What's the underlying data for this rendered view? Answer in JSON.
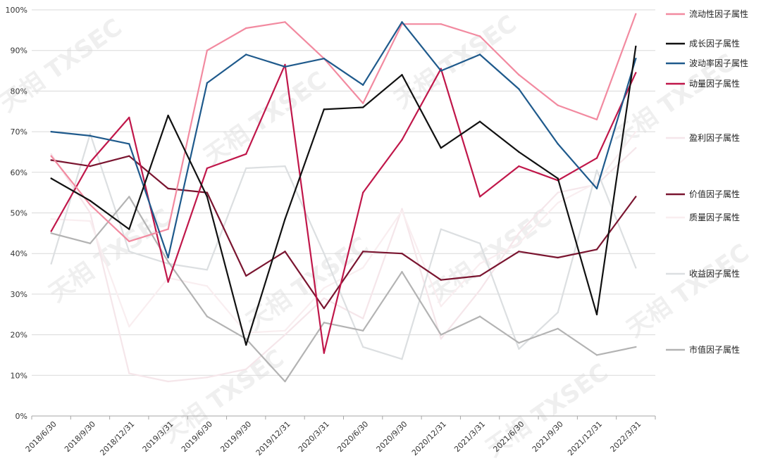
{
  "chart_data": {
    "type": "line",
    "title": "",
    "xlabel": "",
    "ylabel": "",
    "ylim": [
      0,
      100
    ],
    "y_ticks": [
      "0%",
      "10%",
      "20%",
      "30%",
      "40%",
      "50%",
      "60%",
      "70%",
      "80%",
      "90%",
      "100%"
    ],
    "categories": [
      "2018/6/30",
      "2018/9/30",
      "2018/12/31",
      "2019/3/31",
      "2019/6/30",
      "2019/9/30",
      "2019/12/31",
      "2020/3/31",
      "2020/6/30",
      "2020/9/30",
      "2020/12/31",
      "2021/3/31",
      "2021/6/30",
      "2021/9/30",
      "2021/12/31",
      "2022/3/31"
    ],
    "grid": "horizontal",
    "legend_position": "right",
    "watermark": "天相 TXSEC",
    "series": [
      {
        "name": "流动性因子属性",
        "color": "#f28aa0",
        "values": [
          64,
          52,
          43,
          46,
          90,
          95.5,
          97,
          88,
          77,
          96.5,
          96.5,
          93.5,
          84,
          76.5,
          73,
          99
        ]
      },
      {
        "name": "成长因子属性",
        "color": "#111111",
        "values": [
          58.5,
          53,
          46,
          74,
          54,
          17.5,
          48.5,
          75.5,
          76,
          84,
          66,
          72.5,
          65,
          58.5,
          25,
          91
        ]
      },
      {
        "name": "波动率因子属性",
        "color": "#1f5a8c",
        "values": [
          70,
          69,
          67,
          39,
          82,
          89,
          86,
          88,
          81.5,
          97,
          85,
          89,
          80.5,
          67,
          56,
          88
        ]
      },
      {
        "name": "动量因子属性",
        "color": "#c0174a",
        "values": [
          45.5,
          62.5,
          73.5,
          33,
          61,
          64.5,
          86.5,
          15.5,
          55,
          68,
          85.5,
          54,
          61.5,
          58,
          63.5,
          84.5
        ]
      },
      {
        "name": "盈利因子属性",
        "color": "#f5e6ea",
        "values": [
          64.5,
          50,
          10.5,
          8.5,
          9.5,
          11.5,
          20,
          29,
          24,
          51,
          19,
          31,
          45,
          55,
          57,
          66
        ]
      },
      {
        "name": "价值因子属性",
        "color": "#7a1530",
        "values": [
          63,
          61.5,
          64,
          56,
          55,
          34.5,
          40.5,
          26.5,
          40.5,
          40,
          33.5,
          34.5,
          40.5,
          39,
          41,
          54
        ]
      },
      {
        "name": "质量因子属性",
        "color": "#f9eef0",
        "values": [
          48.5,
          48,
          22,
          34,
          32,
          20.5,
          21,
          31.5,
          36.5,
          50.5,
          27,
          37.5,
          42.5,
          52.5,
          57.5,
          70
        ]
      },
      {
        "name": "收益因子属性",
        "color": "#dcdfe1",
        "values": [
          37.5,
          69.5,
          40.5,
          37.5,
          36,
          61,
          61.5,
          40,
          17,
          14,
          46,
          42.5,
          16.5,
          25.5,
          60.5,
          36.5
        ]
      },
      {
        "name": "市值因子属性",
        "color": "#b3b3b3",
        "values": [
          45,
          42.5,
          54,
          38,
          24.5,
          19,
          8.5,
          23,
          21,
          35.5,
          20,
          24.5,
          18,
          21.5,
          15,
          17
        ]
      }
    ]
  }
}
